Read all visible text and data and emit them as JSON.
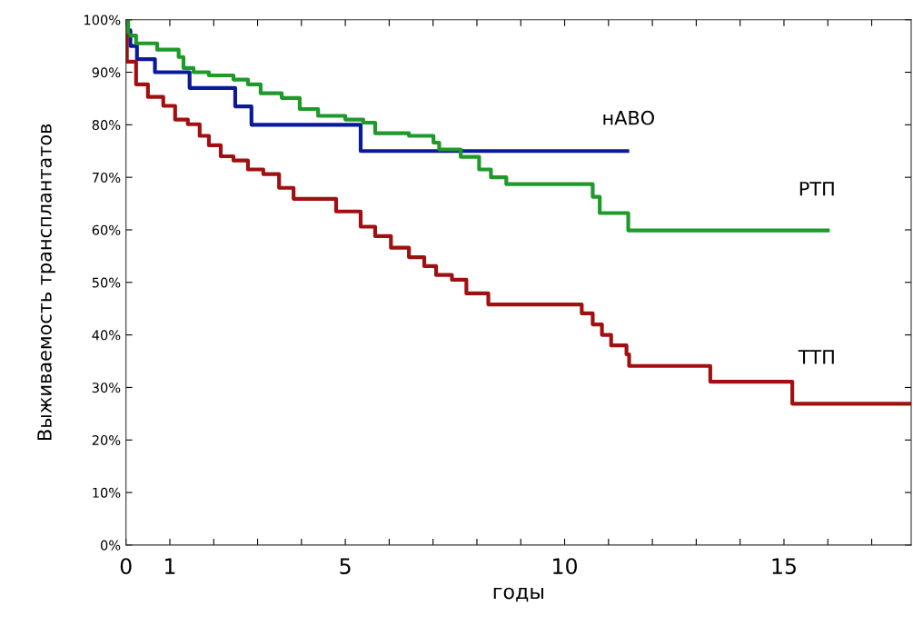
{
  "chart_data": {
    "type": "step",
    "xlabel": "годы",
    "ylabel": "Выживаемость трансплантатов",
    "xlim": [
      0,
      17.9
    ],
    "ylim": [
      0,
      100
    ],
    "xticks": [
      0,
      1,
      {
        "value": 2,
        "label": null
      },
      {
        "value": 3,
        "label": null
      },
      {
        "value": 4,
        "label": null
      },
      5,
      {
        "value": 6,
        "label": null
      },
      {
        "value": 7,
        "label": null
      },
      {
        "value": 8,
        "label": null
      },
      {
        "value": 9,
        "label": null
      },
      10,
      {
        "value": 11,
        "label": null
      },
      {
        "value": 12,
        "label": null
      },
      {
        "value": 13,
        "label": null
      },
      {
        "value": 14,
        "label": null
      },
      15,
      {
        "value": 16,
        "label": null
      },
      {
        "value": 17,
        "label": null
      }
    ],
    "yticks": [
      {
        "value": 0,
        "label": "0%"
      },
      {
        "value": 10,
        "label": "10%"
      },
      {
        "value": 20,
        "label": "20%"
      },
      {
        "value": 30,
        "label": "30%"
      },
      {
        "value": 40,
        "label": "40%"
      },
      {
        "value": 50,
        "label": "50%"
      },
      {
        "value": 60,
        "label": "60%"
      },
      {
        "value": 70,
        "label": "70%"
      },
      {
        "value": 80,
        "label": "80%"
      },
      {
        "value": 90,
        "label": "90%"
      },
      {
        "value": 100,
        "label": "100%"
      }
    ],
    "grid": false,
    "legend": false,
    "marker": "none",
    "line_style": "solid",
    "series": [
      {
        "name": "нАВО",
        "color": "#0a1a9a",
        "x": [
          0,
          0.1,
          0.25,
          0.66,
          1.45,
          2.49,
          2.86,
          5.35,
          11.43
        ],
        "values": [
          98,
          95,
          92.5,
          90,
          87,
          83.5,
          80,
          75,
          75
        ]
      },
      {
        "name": "РТП",
        "color": "#1e9a2a",
        "x": [
          0,
          0.05,
          0.23,
          0.71,
          1.2,
          1.31,
          1.54,
          1.89,
          2.45,
          2.78,
          3.07,
          3.55,
          3.96,
          4.38,
          5.0,
          5.41,
          5.68,
          6.45,
          7.01,
          7.14,
          7.63,
          8.05,
          8.32,
          8.67,
          10.64,
          10.8,
          11.45,
          16.0
        ],
        "values": [
          100,
          97,
          95.5,
          94.3,
          92.9,
          90.8,
          90,
          89.4,
          88.6,
          87.7,
          86,
          85.1,
          83,
          81.7,
          81,
          80.4,
          78.4,
          77.9,
          76.6,
          75.3,
          73.9,
          71.5,
          70,
          68.7,
          66.3,
          63.2,
          59.9,
          59.9
        ]
      },
      {
        "name": "ТТП",
        "color": "#a01010",
        "x": [
          0,
          0.02,
          0.23,
          0.5,
          0.85,
          1.12,
          1.41,
          1.68,
          1.89,
          2.16,
          2.45,
          2.78,
          3.13,
          3.49,
          3.82,
          4.79,
          5.35,
          5.68,
          6.04,
          6.45,
          6.8,
          7.07,
          7.43,
          7.76,
          8.26,
          10.39,
          10.64,
          10.85,
          11.06,
          11.41,
          11.47,
          13.32,
          15.19,
          17.9
        ],
        "values": [
          97,
          92,
          87.7,
          85.3,
          83.6,
          81,
          80.1,
          77.9,
          76.1,
          74,
          73.2,
          71.5,
          70.6,
          68,
          65.9,
          63.5,
          60.6,
          58.8,
          56.6,
          54.8,
          53.1,
          51.4,
          50.5,
          47.9,
          45.8,
          44.1,
          42,
          40,
          38,
          36.3,
          34.1,
          31.1,
          26.9,
          26.9
        ]
      }
    ]
  }
}
